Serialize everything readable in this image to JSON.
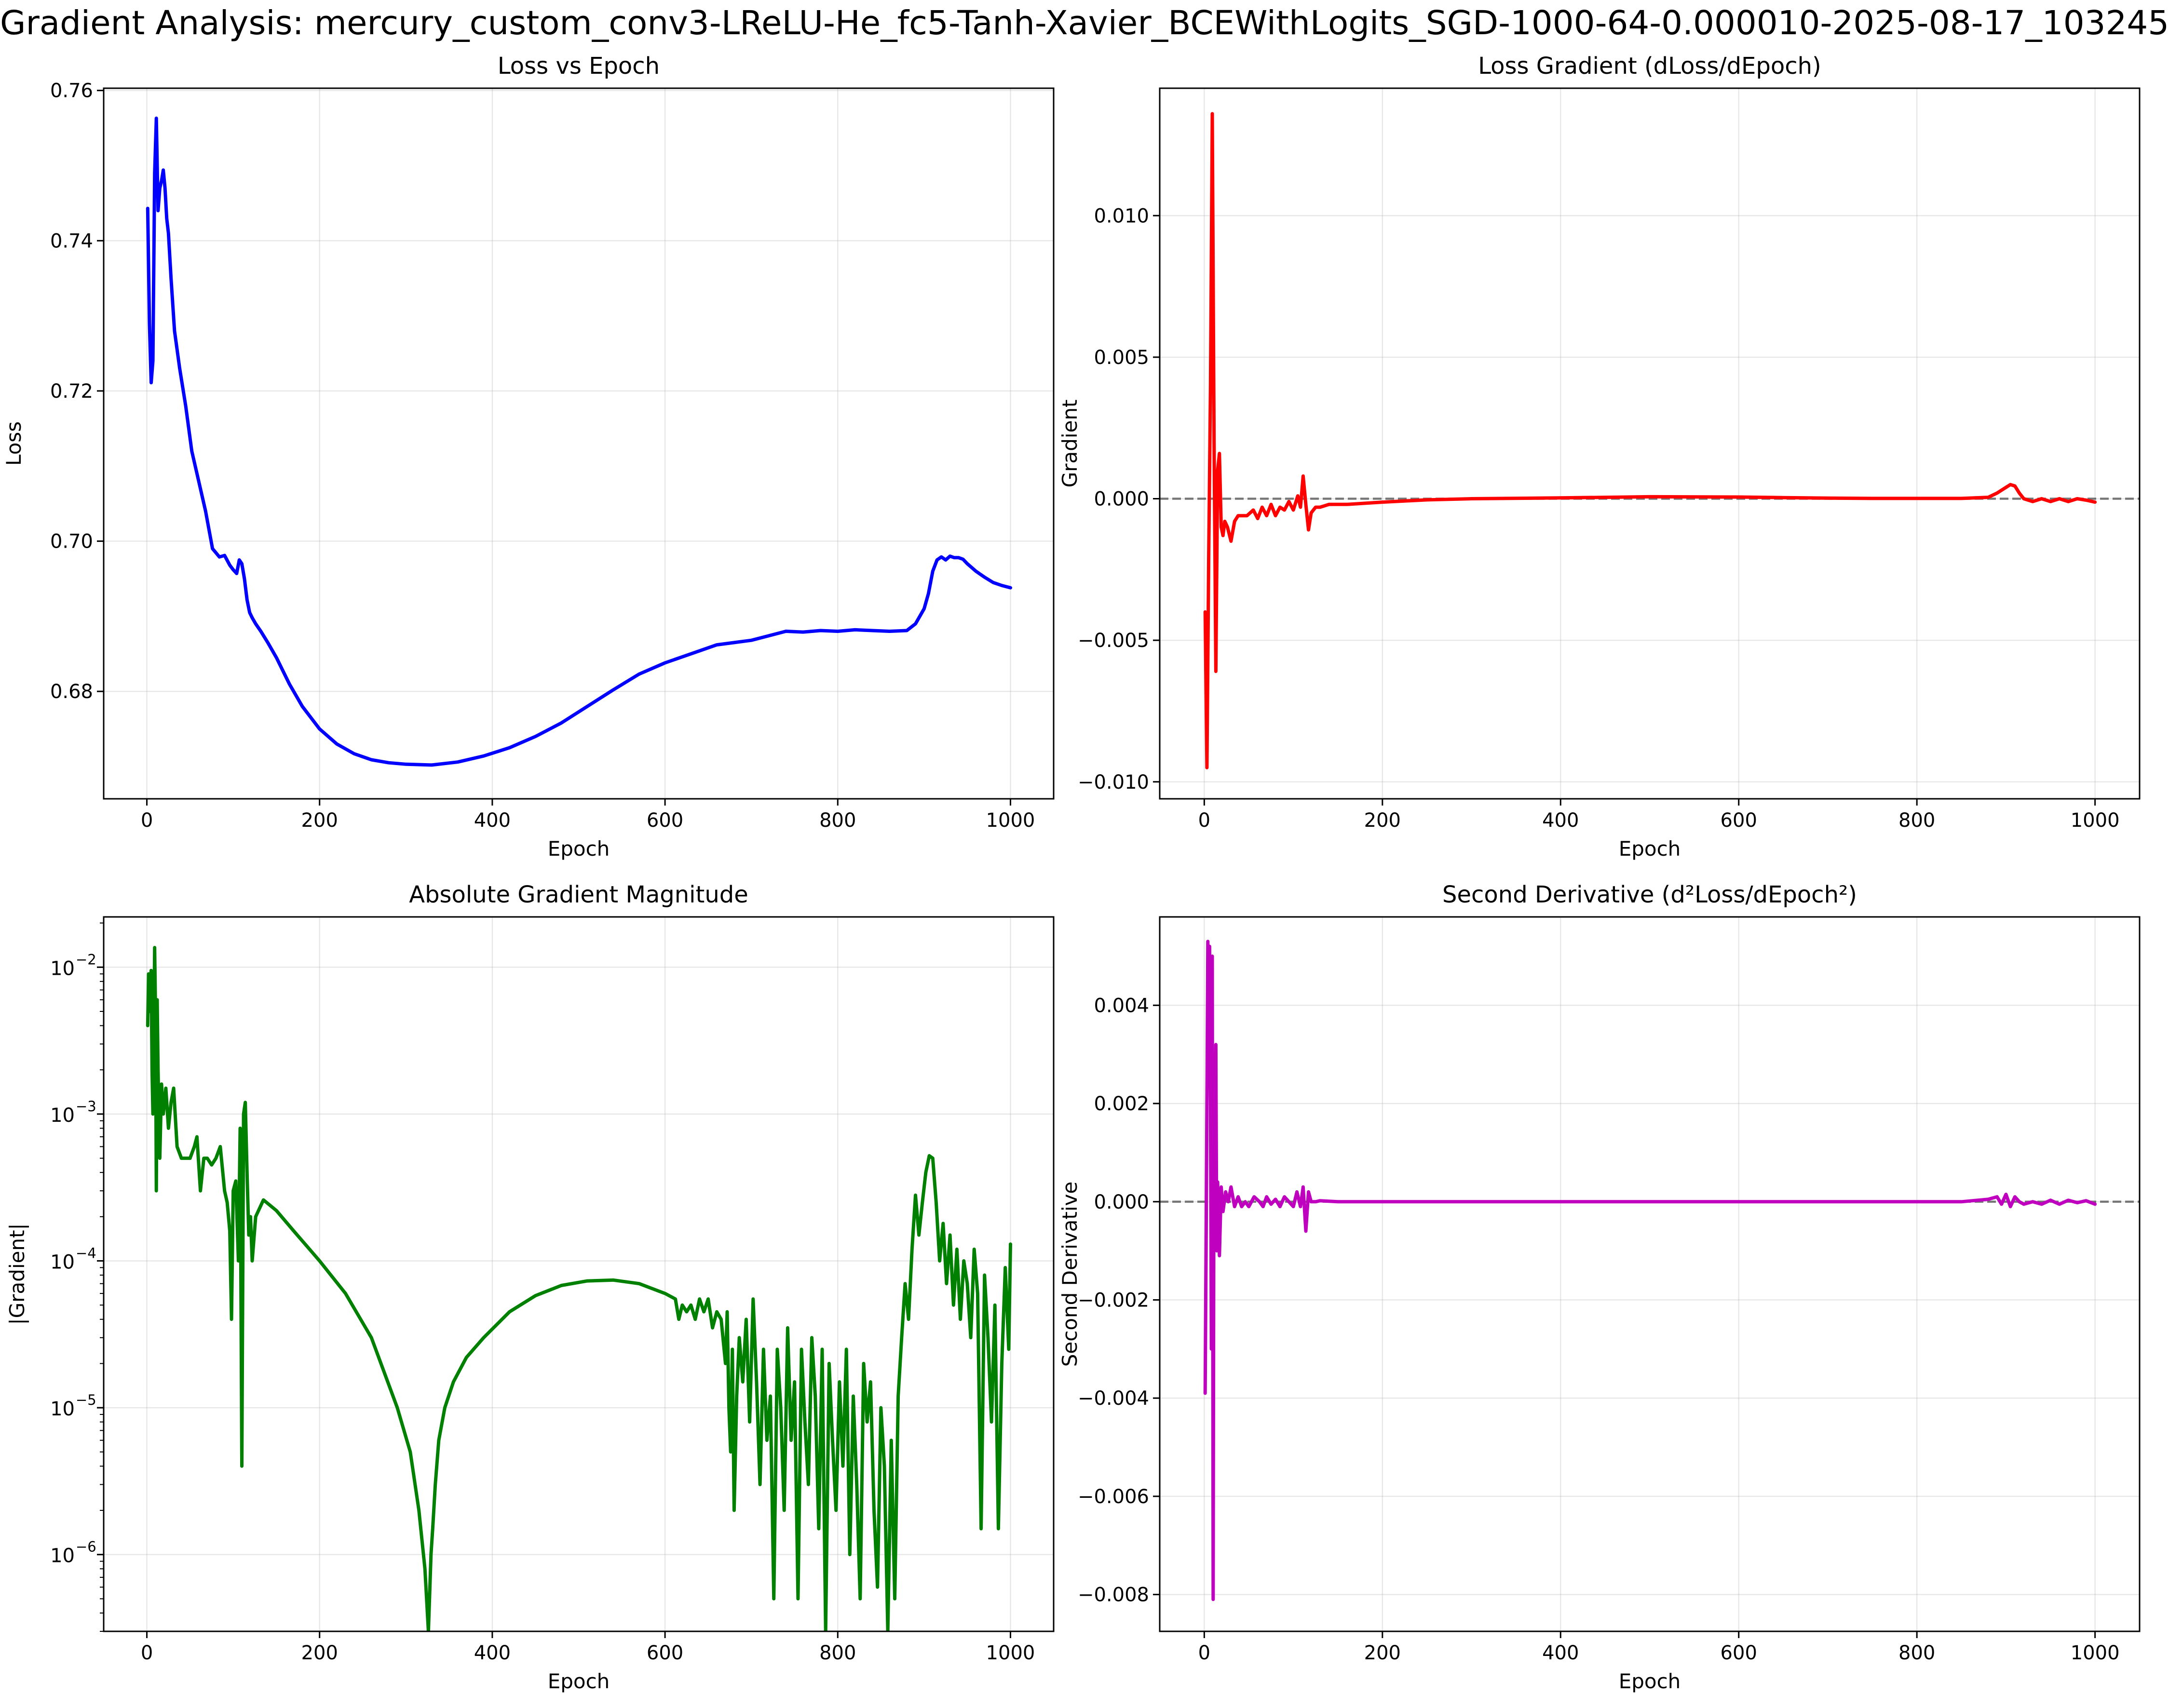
{
  "figure": {
    "suptitle": "Gradient Analysis: mercury_custom_conv3-LReLU-He_fc5-Tanh-Xavier_BCEWithLogits_SGD-1000-64-0.000010-2025-08-17_103245"
  },
  "chart_data": [
    {
      "id": "loss",
      "type": "line",
      "title": "Loss vs Epoch",
      "xlabel": "Epoch",
      "ylabel": "Loss",
      "xlim": [
        -50,
        1050
      ],
      "ylim": [
        0.6657,
        0.7603
      ],
      "yscale": "linear",
      "grid": true,
      "xticks": [
        0,
        200,
        400,
        600,
        800,
        1000
      ],
      "xtick_labels": [
        "0",
        "200",
        "400",
        "600",
        "800",
        "1000"
      ],
      "yticks": [
        0.68,
        0.7,
        0.72,
        0.74,
        0.76
      ],
      "ytick_labels": [
        "0.68",
        "0.70",
        "0.72",
        "0.74",
        "0.76"
      ],
      "zero_line": false,
      "series": [
        {
          "color": "#0000ff",
          "x": [
            1,
            3,
            5,
            7,
            9,
            11,
            13,
            15,
            17,
            19,
            21,
            23,
            25,
            28,
            32,
            38,
            45,
            52,
            60,
            68,
            76,
            84,
            90,
            96,
            100,
            104,
            107,
            110,
            113,
            116,
            119,
            122,
            126,
            132,
            140,
            150,
            165,
            180,
            200,
            220,
            240,
            260,
            280,
            300,
            330,
            360,
            390,
            420,
            450,
            480,
            510,
            540,
            570,
            600,
            630,
            660,
            700,
            720,
            740,
            760,
            780,
            800,
            820,
            840,
            860,
            880,
            890,
            900,
            905,
            910,
            915,
            920,
            925,
            930,
            935,
            940,
            945,
            950,
            960,
            970,
            980,
            990,
            1000
          ],
          "y": [
            0.7443,
            0.729,
            0.7211,
            0.724,
            0.749,
            0.7563,
            0.744,
            0.747,
            0.748,
            0.7494,
            0.747,
            0.743,
            0.741,
            0.735,
            0.728,
            0.723,
            0.718,
            0.712,
            0.708,
            0.704,
            0.699,
            0.6979,
            0.6981,
            0.6968,
            0.6962,
            0.6957,
            0.6975,
            0.697,
            0.695,
            0.6922,
            0.6905,
            0.6898,
            0.689,
            0.688,
            0.6865,
            0.6845,
            0.681,
            0.678,
            0.675,
            0.673,
            0.6717,
            0.6709,
            0.6705,
            0.6703,
            0.6702,
            0.6706,
            0.6714,
            0.6725,
            0.674,
            0.6758,
            0.678,
            0.6802,
            0.6823,
            0.6838,
            0.685,
            0.6862,
            0.6868,
            0.6874,
            0.688,
            0.6879,
            0.6881,
            0.688,
            0.6882,
            0.6881,
            0.688,
            0.6881,
            0.689,
            0.691,
            0.693,
            0.696,
            0.6975,
            0.6979,
            0.6975,
            0.698,
            0.6978,
            0.6978,
            0.6976,
            0.697,
            0.696,
            0.6952,
            0.6945,
            0.6941,
            0.6938
          ]
        }
      ]
    },
    {
      "id": "gradient",
      "type": "line",
      "title": "Loss Gradient (dLoss/dEpoch)",
      "xlabel": "Epoch",
      "ylabel": "Gradient",
      "xlim": [
        -50,
        1050
      ],
      "ylim": [
        -0.0106,
        0.0145
      ],
      "yscale": "linear",
      "grid": true,
      "xticks": [
        0,
        200,
        400,
        600,
        800,
        1000
      ],
      "xtick_labels": [
        "0",
        "200",
        "400",
        "600",
        "800",
        "1000"
      ],
      "yticks": [
        -0.01,
        -0.005,
        0.0,
        0.005,
        0.01
      ],
      "ytick_labels": [
        "−0.010",
        "−0.005",
        "0.000",
        "0.005",
        "0.010"
      ],
      "zero_line": true,
      "series": [
        {
          "color": "#ff0000",
          "x": [
            1,
            3,
            5,
            7,
            9,
            11,
            13,
            15,
            17,
            19,
            21,
            23,
            26,
            30,
            34,
            38,
            42,
            48,
            55,
            60,
            65,
            70,
            75,
            80,
            85,
            90,
            95,
            100,
            105,
            108,
            111,
            114,
            117,
            120,
            125,
            130,
            140,
            160,
            200,
            250,
            300,
            400,
            500,
            600,
            650,
            700,
            750,
            800,
            850,
            880,
            890,
            900,
            905,
            910,
            915,
            920,
            930,
            940,
            950,
            960,
            970,
            980,
            990,
            1000
          ],
          "y": [
            -0.004,
            -0.0095,
            -0.002,
            0.004,
            0.0136,
            0.002,
            -0.0061,
            0.001,
            0.0016,
            -0.001,
            -0.0013,
            -0.0008,
            -0.001,
            -0.0015,
            -0.0008,
            -0.0006,
            -0.0006,
            -0.0006,
            -0.0004,
            -0.0007,
            -0.0003,
            -0.0006,
            -0.0002,
            -0.0006,
            -0.0003,
            -0.0004,
            -0.0001,
            -0.0004,
            0.0001,
            -0.0003,
            0.0008,
            -0.0002,
            -0.0011,
            -0.0005,
            -0.0003,
            -0.0003,
            -0.0002,
            -0.0002,
            -0.00012,
            -4e-05,
            0.0,
            3e-05,
            7e-05,
            6e-05,
            4e-05,
            2e-05,
            1e-05,
            1e-05,
            1e-05,
            5e-05,
            0.0002,
            0.0004,
            0.0005,
            0.00045,
            0.0002,
            0.0,
            -0.0001,
            0.0,
            -0.0001,
            0.0,
            -0.0001,
            0.0,
            -5e-05,
            -0.00012
          ]
        }
      ]
    },
    {
      "id": "abs_gradient",
      "type": "line",
      "title": "Absolute Gradient Magnitude",
      "xlabel": "Epoch",
      "ylabel": "|Gradient|",
      "xlim": [
        -50,
        1050
      ],
      "ylim": [
        3e-07,
        0.022
      ],
      "yscale": "log",
      "grid": true,
      "xticks": [
        0,
        200,
        400,
        600,
        800,
        1000
      ],
      "xtick_labels": [
        "0",
        "200",
        "400",
        "600",
        "800",
        "1000"
      ],
      "yticks": [
        1e-06,
        1e-05,
        0.0001,
        0.001,
        0.01
      ],
      "ytick_labels": [
        "10",
        "10",
        "10",
        "10",
        "10"
      ],
      "ytick_exponents": [
        "−6",
        "−5",
        "−4",
        "−3",
        "−2"
      ],
      "zero_line": false,
      "series": [
        {
          "color": "#008000",
          "x": [
            1,
            2,
            3,
            4,
            5,
            6,
            7,
            8,
            9,
            10,
            11,
            12,
            13,
            14,
            15,
            17,
            19,
            22,
            25,
            28,
            31,
            35,
            40,
            45,
            50,
            55,
            58,
            62,
            66,
            70,
            75,
            80,
            85,
            90,
            93,
            96,
            98,
            100,
            103,
            106,
            108,
            110,
            112,
            114,
            116,
            118,
            120,
            122,
            126,
            135,
            150,
            170,
            200,
            230,
            260,
            290,
            305,
            315,
            322,
            326,
            329,
            331,
            334,
            338,
            345,
            355,
            370,
            390,
            420,
            450,
            480,
            510,
            540,
            570,
            600,
            612,
            616,
            620,
            625,
            630,
            635,
            640,
            645,
            650,
            655,
            660,
            665,
            670,
            672,
            674,
            676,
            678,
            680,
            683,
            686,
            690,
            694,
            698,
            702,
            706,
            710,
            714,
            718,
            722,
            726,
            730,
            734,
            738,
            742,
            746,
            750,
            754,
            758,
            762,
            766,
            770,
            774,
            778,
            782,
            786,
            790,
            794,
            798,
            802,
            806,
            810,
            814,
            818,
            822,
            826,
            830,
            834,
            838,
            842,
            846,
            850,
            854,
            858,
            862,
            866,
            870,
            874,
            878,
            882,
            886,
            890,
            894,
            898,
            902,
            906,
            910,
            914,
            918,
            922,
            926,
            930,
            934,
            938,
            942,
            946,
            950,
            954,
            958,
            962,
            966,
            970,
            974,
            978,
            982,
            986,
            990,
            994,
            998,
            1000
          ],
          "y": [
            0.004,
            0.009,
            0.005,
            0.008,
            0.0095,
            0.002,
            0.001,
            0.003,
            0.0136,
            0.005,
            0.0003,
            0.006,
            0.002,
            0.001,
            0.0005,
            0.0016,
            0.001,
            0.0015,
            0.0008,
            0.0012,
            0.0015,
            0.0006,
            0.0005,
            0.0005,
            0.0005,
            0.0006,
            0.0007,
            0.0003,
            0.0005,
            0.0005,
            0.00045,
            0.0005,
            0.0006,
            0.0003,
            0.00025,
            0.00016,
            4e-05,
            0.0003,
            0.00035,
            0.0001,
            0.0008,
            4e-06,
            0.001,
            0.0012,
            0.0004,
            0.00015,
            0.0002,
            0.0001,
            0.0002,
            0.00026,
            0.00022,
            0.00016,
            0.0001,
            6e-05,
            3e-05,
            1e-05,
            5e-06,
            2e-06,
            8e-07,
            3e-07,
            1e-06,
            1.5e-06,
            3e-06,
            6e-06,
            1e-05,
            1.5e-05,
            2.2e-05,
            3e-05,
            4.5e-05,
            5.8e-05,
            6.8e-05,
            7.3e-05,
            7.4e-05,
            7e-05,
            6e-05,
            5.5e-05,
            4e-05,
            5e-05,
            4.5e-05,
            5e-05,
            4e-05,
            5.5e-05,
            4.5e-05,
            5.5e-05,
            3.5e-05,
            4.5e-05,
            4e-05,
            2e-05,
            4.5e-05,
            1e-05,
            5e-06,
            2.5e-05,
            2e-06,
            1.2e-05,
            3e-05,
            1.5e-05,
            4e-05,
            8e-06,
            5.5e-05,
            1.5e-05,
            3e-06,
            2.5e-05,
            6e-06,
            1.2e-05,
            5e-07,
            2.5e-05,
            1e-05,
            2e-06,
            3.5e-05,
            6e-06,
            1.5e-05,
            5e-07,
            2.5e-05,
            8e-06,
            3e-06,
            3e-05,
            1.2e-05,
            1.5e-06,
            2.5e-05,
            3e-07,
            2e-05,
            6e-06,
            2e-06,
            1.5e-05,
            4e-06,
            2.5e-05,
            1e-06,
            1.2e-05,
            3e-06,
            5e-07,
            2e-05,
            8e-06,
            1.5e-05,
            2e-06,
            6e-07,
            1e-05,
            4e-06,
            3e-07,
            6e-06,
            5e-07,
            1.2e-05,
            3e-05,
            7e-05,
            4e-05,
            0.00012,
            0.00028,
            0.00015,
            0.00025,
            0.0004,
            0.00052,
            0.0005,
            0.00025,
            0.0001,
            0.00018,
            7e-05,
            0.00015,
            5e-05,
            0.00012,
            4e-05,
            0.0001,
            7e-05,
            3e-05,
            0.00012,
            6e-05,
            1.5e-06,
            8e-05,
            3e-05,
            8e-06,
            5e-05,
            1.5e-06,
            2e-05,
            9e-05,
            2.5e-05,
            0.00013
          ]
        }
      ]
    },
    {
      "id": "second_derivative",
      "type": "line",
      "title": "Second Derivative (d²Loss/dEpoch²)",
      "xlabel": "Epoch",
      "ylabel": "Second Derivative",
      "xlim": [
        -50,
        1050
      ],
      "ylim": [
        -0.00875,
        0.0058
      ],
      "yscale": "linear",
      "grid": true,
      "xticks": [
        0,
        200,
        400,
        600,
        800,
        1000
      ],
      "xtick_labels": [
        "0",
        "200",
        "400",
        "600",
        "800",
        "1000"
      ],
      "yticks": [
        -0.008,
        -0.006,
        -0.004,
        -0.002,
        0.0,
        0.002,
        0.004
      ],
      "ytick_labels": [
        "−0.008",
        "−0.006",
        "−0.004",
        "−0.002",
        "0.000",
        "0.002",
        "0.004"
      ],
      "zero_line": true,
      "series": [
        {
          "color": "#bf00bf",
          "x": [
            1,
            2,
            3,
            4,
            5,
            6,
            7,
            8,
            9,
            10,
            11,
            12,
            13,
            14,
            15,
            17,
            19,
            21,
            24,
            27,
            30,
            34,
            38,
            42,
            46,
            50,
            56,
            62,
            66,
            70,
            75,
            80,
            85,
            90,
            95,
            100,
            104,
            108,
            111,
            114,
            117,
            120,
            125,
            130,
            150,
            200,
            300,
            400,
            500,
            600,
            700,
            800,
            850,
            880,
            890,
            895,
            900,
            905,
            910,
            915,
            920,
            930,
            940,
            950,
            960,
            970,
            980,
            990,
            1000
          ],
          "y": [
            -0.0039,
            -0.001,
            0.002,
            0.0053,
            0.0035,
            0.0052,
            0.002,
            -0.003,
            0.005,
            -0.0081,
            0.003,
            -0.0005,
            0.0032,
            -0.001,
            0.0004,
            -0.0011,
            0.0003,
            -0.0002,
            0.0002,
            0.0,
            0.0003,
            -0.0001,
            0.0001,
            -0.0001,
            0.0,
            -0.0001,
            0.0001,
            0.0,
            -0.0001,
            0.0001,
            -5e-05,
            5e-05,
            -0.0001,
            0.0001,
            0.0,
            -0.0001,
            0.0002,
            -0.0001,
            0.0003,
            -0.0006,
            0.0002,
            0.0,
            0.0,
            2e-05,
            0.0,
            0.0,
            0.0,
            0.0,
            0.0,
            0.0,
            0.0,
            0.0,
            0.0,
            5e-05,
            0.0001,
            -5e-05,
            0.00015,
            -0.0001,
            0.0001,
            0.0,
            -5e-05,
            0.0,
            -5e-05,
            3e-05,
            -5e-05,
            3e-05,
            -2e-05,
            2e-05,
            -5e-05
          ]
        }
      ]
    }
  ]
}
